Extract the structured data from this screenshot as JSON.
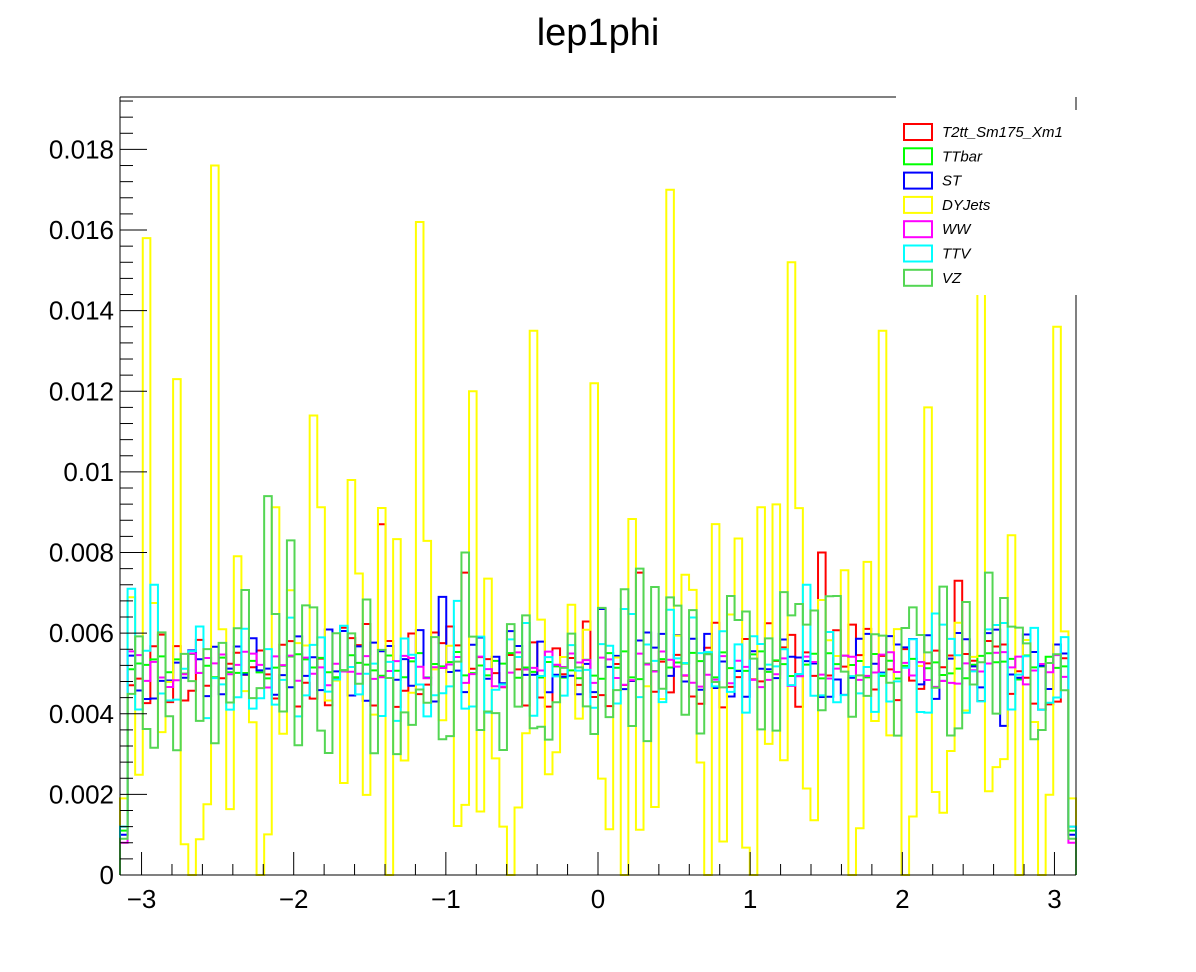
{
  "chart_data": {
    "type": "line",
    "title": "lep1phi",
    "xlabel": "",
    "ylabel": "",
    "xlim": [
      -3.1416,
      3.1416
    ],
    "ylim": [
      0,
      0.0193
    ],
    "n_bins": 126,
    "x_ticks": [
      -3,
      -2,
      -1,
      0,
      1,
      2,
      3
    ],
    "x_tick_labels": [
      "−3",
      "−2",
      "−1",
      "0",
      "1",
      "2",
      "3"
    ],
    "y_ticks": [
      0,
      0.002,
      0.004,
      0.006,
      0.008,
      0.01,
      0.012,
      0.014,
      0.016,
      0.018
    ],
    "y_tick_labels": [
      "0",
      "0.002",
      "0.004",
      "0.006",
      "0.008",
      "0.01",
      "0.012",
      "0.014",
      "0.016",
      "0.018"
    ],
    "legend": "top-right",
    "series": [
      {
        "name": "T2tt_Sm175_Xm1",
        "color": "#ff0000",
        "base": 0.0052,
        "amp": 0.0011,
        "seed": 11,
        "edge": 0.0012,
        "spikes": [
          [
            34,
            0.0087
          ],
          [
            45,
            0.0075
          ],
          [
            68,
            0.0075
          ],
          [
            92,
            0.008
          ],
          [
            110,
            0.0073
          ]
        ]
      },
      {
        "name": "TTbar",
        "color": "#00ff00",
        "base": 0.0052,
        "amp": 0.00035,
        "seed": 23,
        "edge": 0.0011,
        "spikes": []
      },
      {
        "name": "ST",
        "color": "#0000ff",
        "base": 0.0052,
        "amp": 0.0009,
        "seed": 37,
        "edge": 0.001,
        "spikes": [
          [
            42,
            0.0069
          ],
          [
            63,
            0.0066
          ],
          [
            116,
            0.0037
          ]
        ]
      },
      {
        "name": "DYJets",
        "color": "#ffff00",
        "base": 0.0048,
        "amp": 0.0045,
        "seed": 5,
        "edge": 0.0019,
        "spikes": [
          [
            3,
            0.0158
          ],
          [
            7,
            0.0123
          ],
          [
            12,
            0.0176
          ],
          [
            25,
            0.0114
          ],
          [
            30,
            0.0098
          ],
          [
            39,
            0.0162
          ],
          [
            46,
            0.012
          ],
          [
            54,
            0.0135
          ],
          [
            62,
            0.0122
          ],
          [
            72,
            0.017
          ],
          [
            88,
            0.0152
          ],
          [
            100,
            0.0135
          ],
          [
            106,
            0.0116
          ],
          [
            113,
            0.0159
          ],
          [
            123,
            0.0136
          ]
        ],
        "dips": [
          9,
          18,
          35,
          51,
          66,
          77,
          83,
          96,
          103,
          118,
          121
        ]
      },
      {
        "name": "WW",
        "color": "#ff00ff",
        "base": 0.0051,
        "amp": 0.00045,
        "seed": 41,
        "edge": 0.0008,
        "spikes": []
      },
      {
        "name": "TTV",
        "color": "#00ffff",
        "base": 0.0052,
        "amp": 0.0014,
        "seed": 53,
        "edge": 0.0012,
        "spikes": [
          [
            1,
            0.0071
          ],
          [
            4,
            0.0072
          ],
          [
            44,
            0.0068
          ],
          [
            66,
            0.0066
          ],
          [
            90,
            0.0072
          ],
          [
            124,
            0.0059
          ]
        ]
      },
      {
        "name": "VZ",
        "color": "#54d654",
        "base": 0.0051,
        "amp": 0.0021,
        "seed": 67,
        "edge": 0.0009,
        "spikes": [
          [
            19,
            0.0094
          ],
          [
            22,
            0.0083
          ],
          [
            45,
            0.008
          ],
          [
            68,
            0.0076
          ],
          [
            114,
            0.0075
          ]
        ]
      }
    ]
  }
}
